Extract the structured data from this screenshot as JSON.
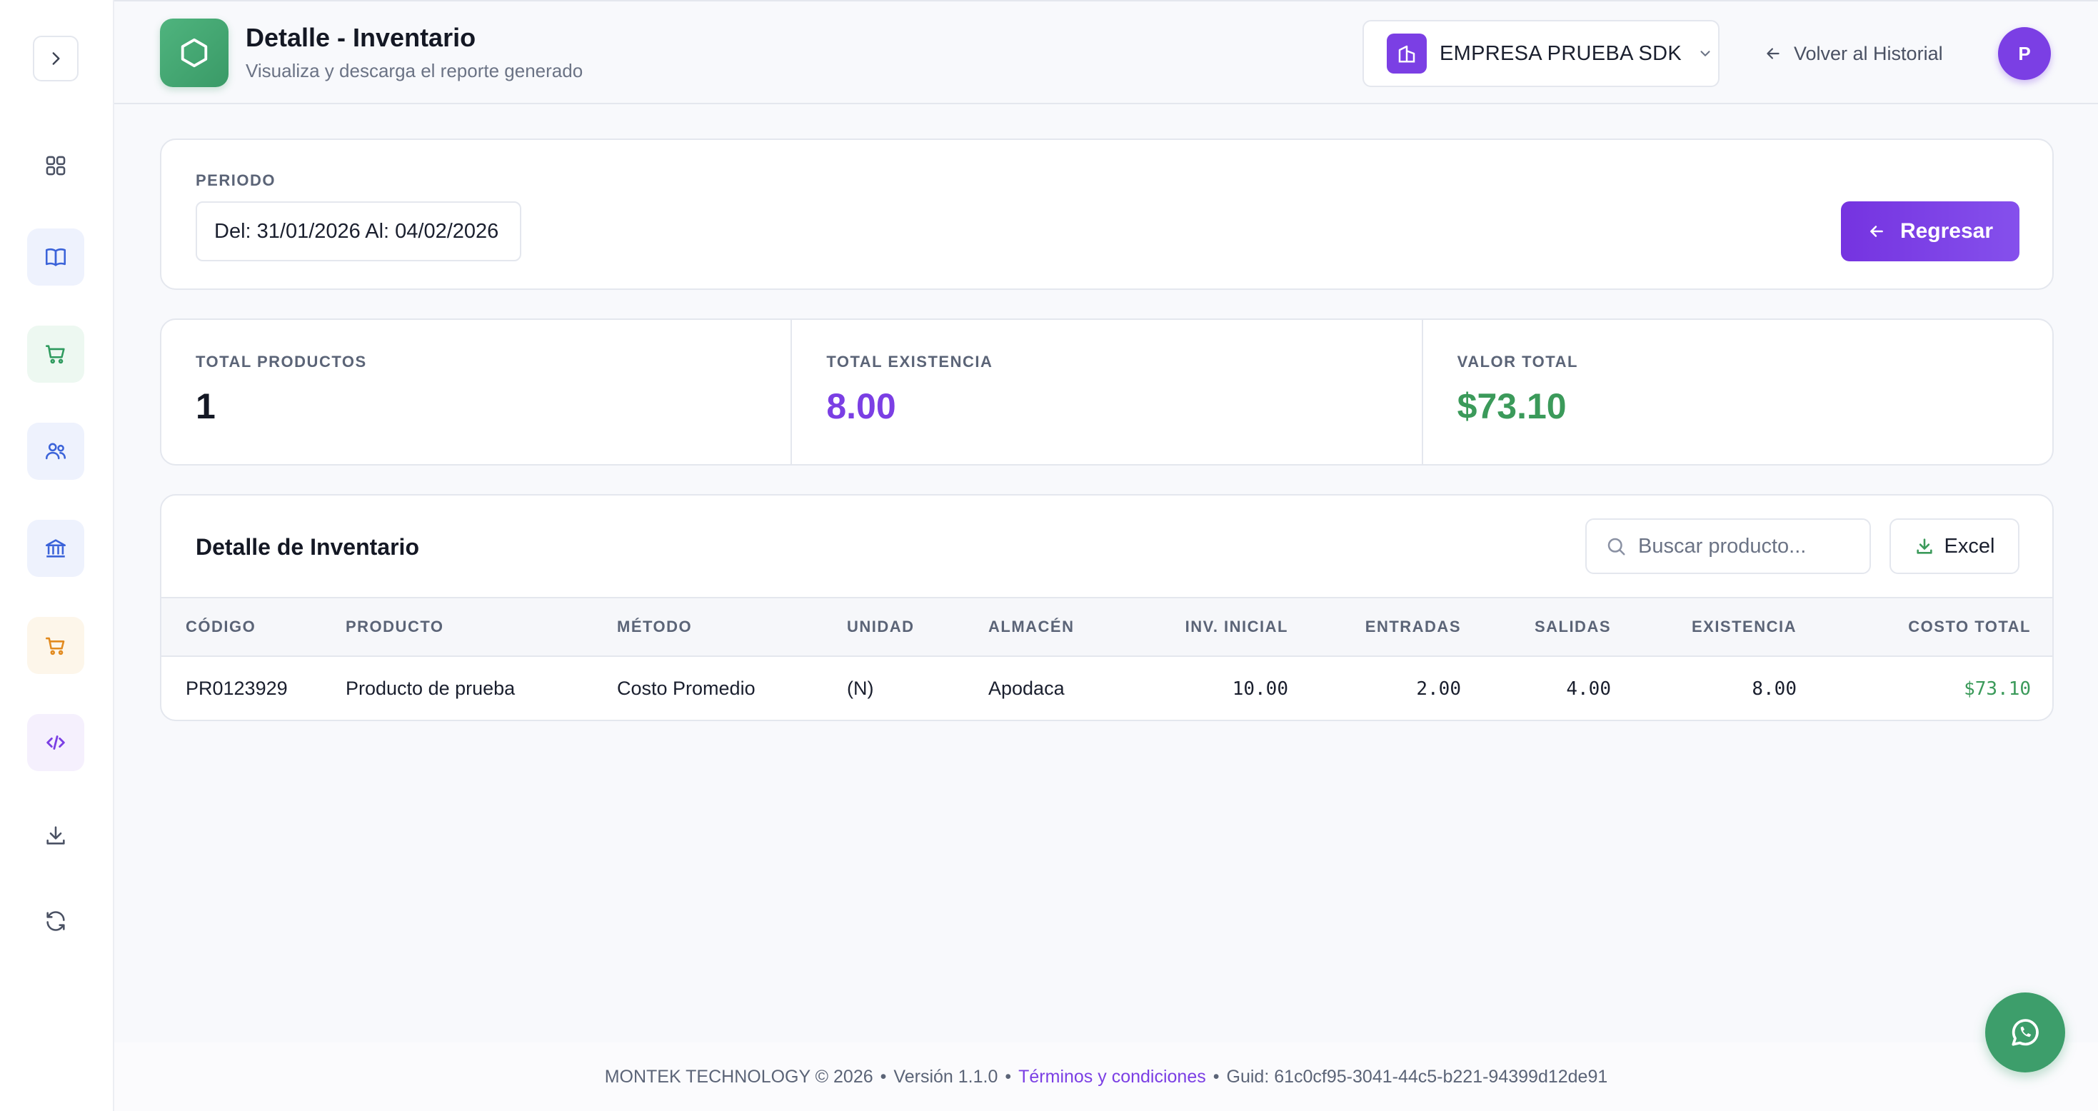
{
  "header": {
    "title": "Detalle - Inventario",
    "subtitle": "Visualiza y descarga el reporte generado",
    "company": "EMPRESA PRUEBA SDK",
    "back_link": "Volver al Historial",
    "avatar_initial": "P"
  },
  "sidebar": {
    "items": [
      {
        "icon": "dashboard-grid-icon",
        "color": "#4a5163"
      },
      {
        "icon": "book-icon",
        "color": "#3b63d9"
      },
      {
        "icon": "shopping-cart-icon",
        "color": "#2e9a5e"
      },
      {
        "icon": "users-icon",
        "color": "#3b63d9"
      },
      {
        "icon": "bank-icon",
        "color": "#3b63d9"
      },
      {
        "icon": "cart-icon",
        "color": "#e28a1e"
      },
      {
        "icon": "code-icon",
        "color": "#7b3fe4"
      },
      {
        "icon": "download-icon",
        "color": "#4a5163"
      },
      {
        "icon": "refresh-icon",
        "color": "#4a5163"
      }
    ]
  },
  "period": {
    "label": "PERIODO",
    "value": "Del: 31/01/2026 Al: 04/02/2026",
    "back_button": "Regresar"
  },
  "stats": {
    "total_products": {
      "label": "TOTAL PRODUCTOS",
      "value": "1"
    },
    "total_stock": {
      "label": "TOTAL EXISTENCIA",
      "value": "8.00"
    },
    "total_value": {
      "label": "VALOR TOTAL",
      "value": "$73.10"
    }
  },
  "detail": {
    "title": "Detalle de Inventario",
    "search_placeholder": "Buscar producto...",
    "excel_label": "Excel",
    "columns": [
      "CÓDIGO",
      "PRODUCTO",
      "MÉTODO",
      "UNIDAD",
      "ALMACÉN",
      "INV. INICIAL",
      "ENTRADAS",
      "SALIDAS",
      "EXISTENCIA",
      "COSTO TOTAL"
    ],
    "rows": [
      {
        "code": "PR0123929",
        "product": "Producto de prueba",
        "method": "Costo Promedio",
        "unit": "(N)",
        "warehouse": "Apodaca",
        "initial": "10.00",
        "inputs": "2.00",
        "outputs": "4.00",
        "stock": "8.00",
        "total_cost": "$73.10"
      }
    ]
  },
  "footer": {
    "company": "MONTEK TECHNOLOGY © 2026",
    "version": "Versión 1.1.0",
    "terms": "Términos y condiciones",
    "guid": "Guid: 61c0cf95-3041-44c5-b221-94399d12de91"
  },
  "colors": {
    "accent": "#7b3fe4",
    "success": "#3b9a5a"
  }
}
